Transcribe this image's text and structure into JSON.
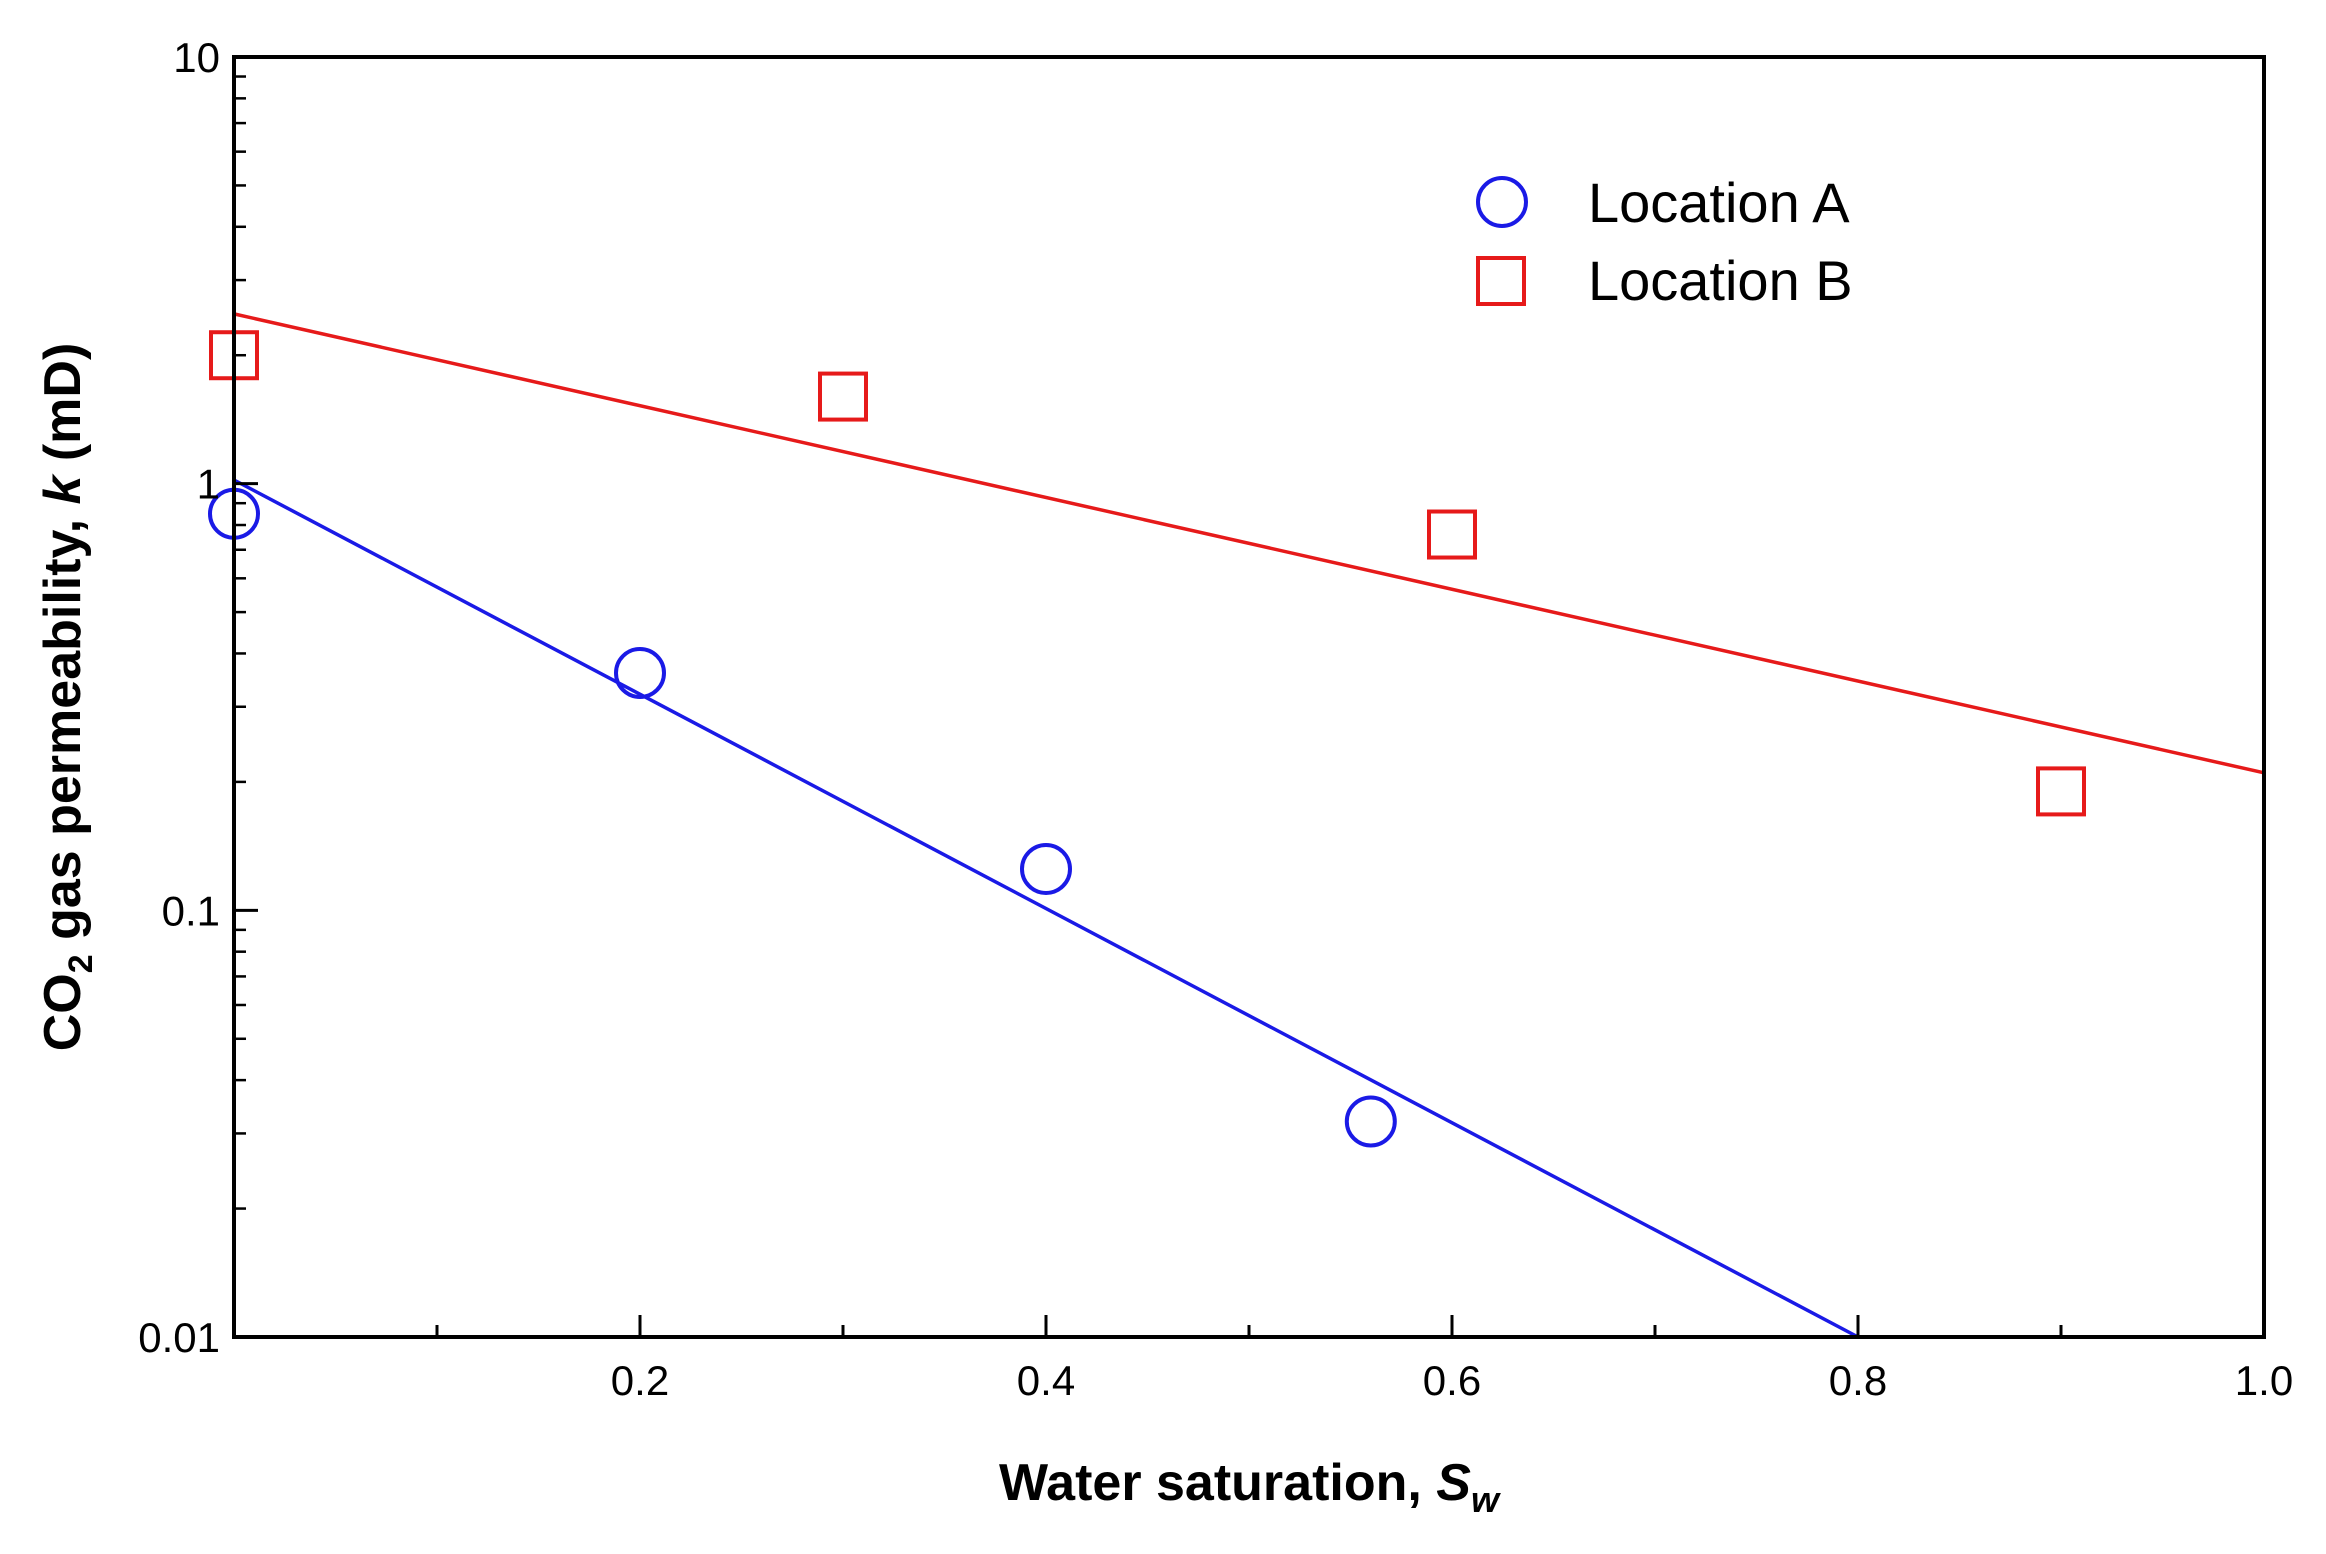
{
  "chart_data": {
    "type": "scatter",
    "x_axis": {
      "label_main": "Water saturation, ",
      "label_var": "S",
      "label_sub": "w",
      "range": [
        0.0,
        1.0
      ],
      "major_ticks": [
        0.0,
        0.2,
        0.4,
        0.6,
        0.8,
        1.0
      ],
      "minor_ticks": [
        0.1,
        0.3,
        0.5,
        0.7,
        0.9
      ],
      "tick_labels": [
        "0.2",
        "0.4",
        "0.6",
        "0.8",
        "1.0"
      ]
    },
    "y_axis": {
      "scale": "log",
      "label_pre": "CO",
      "label_sub": "2",
      "label_mid": " gas permeability, ",
      "label_var": "k",
      "label_unit": " (mD)",
      "range": [
        0.01,
        10
      ],
      "tick_values": [
        0.01,
        0.1,
        1,
        10
      ],
      "tick_labels": [
        "0.01",
        "0.1",
        "1",
        "10"
      ]
    },
    "series": [
      {
        "name": "Location A",
        "marker": "circle",
        "color": "#1a1ae6",
        "points": [
          [
            0.0,
            0.85
          ],
          [
            0.2,
            0.36
          ],
          [
            0.4,
            0.125
          ],
          [
            0.56,
            0.032
          ]
        ],
        "fit_line": [
          [
            0.0,
            1.02
          ],
          [
            0.8,
            0.01
          ]
        ]
      },
      {
        "name": "Location B",
        "marker": "square",
        "color": "#e61a1a",
        "points": [
          [
            0.0,
            2.0
          ],
          [
            0.3,
            1.6
          ],
          [
            0.6,
            0.76
          ],
          [
            0.9,
            0.19
          ]
        ],
        "fit_line": [
          [
            0.0,
            2.5
          ],
          [
            1.0,
            0.21
          ]
        ]
      }
    ],
    "legend": {
      "position": "top-right",
      "entries": [
        "Location A",
        "Location B"
      ]
    }
  }
}
